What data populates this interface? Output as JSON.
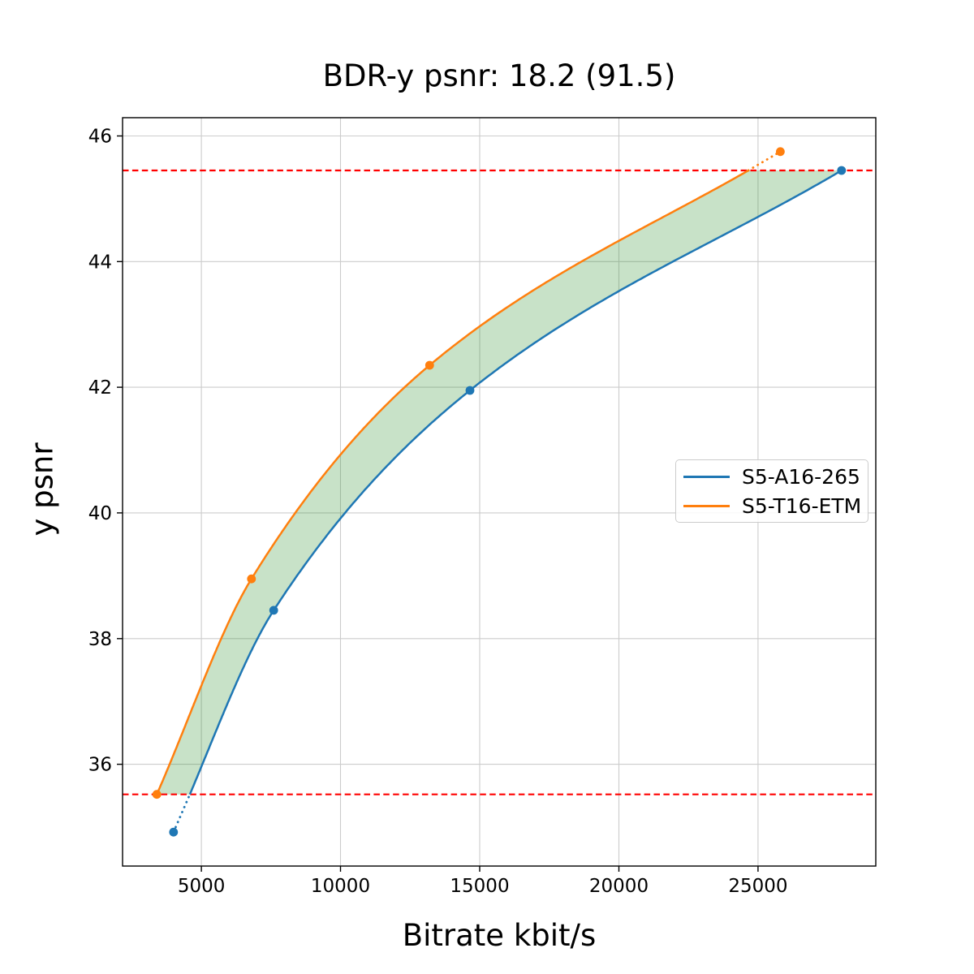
{
  "figure": {
    "title": "BDR-y psnr: 18.2 (91.5)",
    "background_color": "#ffffff"
  },
  "chart_data": {
    "type": "line",
    "title": "BDR-y psnr: 18.2 (91.5)",
    "xlabel": "Bitrate kbit/s",
    "ylabel": "y psnr",
    "xlim": [
      2170,
      29230
    ],
    "ylim": [
      34.38,
      46.29
    ],
    "xticks": [
      5000,
      10000,
      15000,
      20000,
      25000
    ],
    "yticks": [
      36,
      38,
      40,
      42,
      44,
      46
    ],
    "grid": true,
    "grid_color": "#cccccc",
    "axis_color": "#000000",
    "interpolation": "pchip",
    "series": [
      {
        "name": "S5-A16-265",
        "color": "#1f77b4",
        "points": [
          [
            4000,
            34.92
          ],
          [
            7600,
            38.45
          ],
          [
            14650,
            41.95
          ],
          [
            28000,
            45.45
          ]
        ]
      },
      {
        "name": "S5-T16-ETM",
        "color": "#ff7f0e",
        "points": [
          [
            3400,
            35.52
          ],
          [
            6800,
            38.95
          ],
          [
            13200,
            42.35
          ],
          [
            25800,
            45.75
          ]
        ]
      }
    ],
    "overlap_band": {
      "low": 35.52,
      "high": 45.45,
      "line_color": "#ff0000",
      "line_style": "dashed",
      "fill_color": "rgba(34,139,34,0.25)"
    },
    "legend": {
      "position": "center-right",
      "entries": [
        "S5-A16-265",
        "S5-T16-ETM"
      ]
    }
  }
}
